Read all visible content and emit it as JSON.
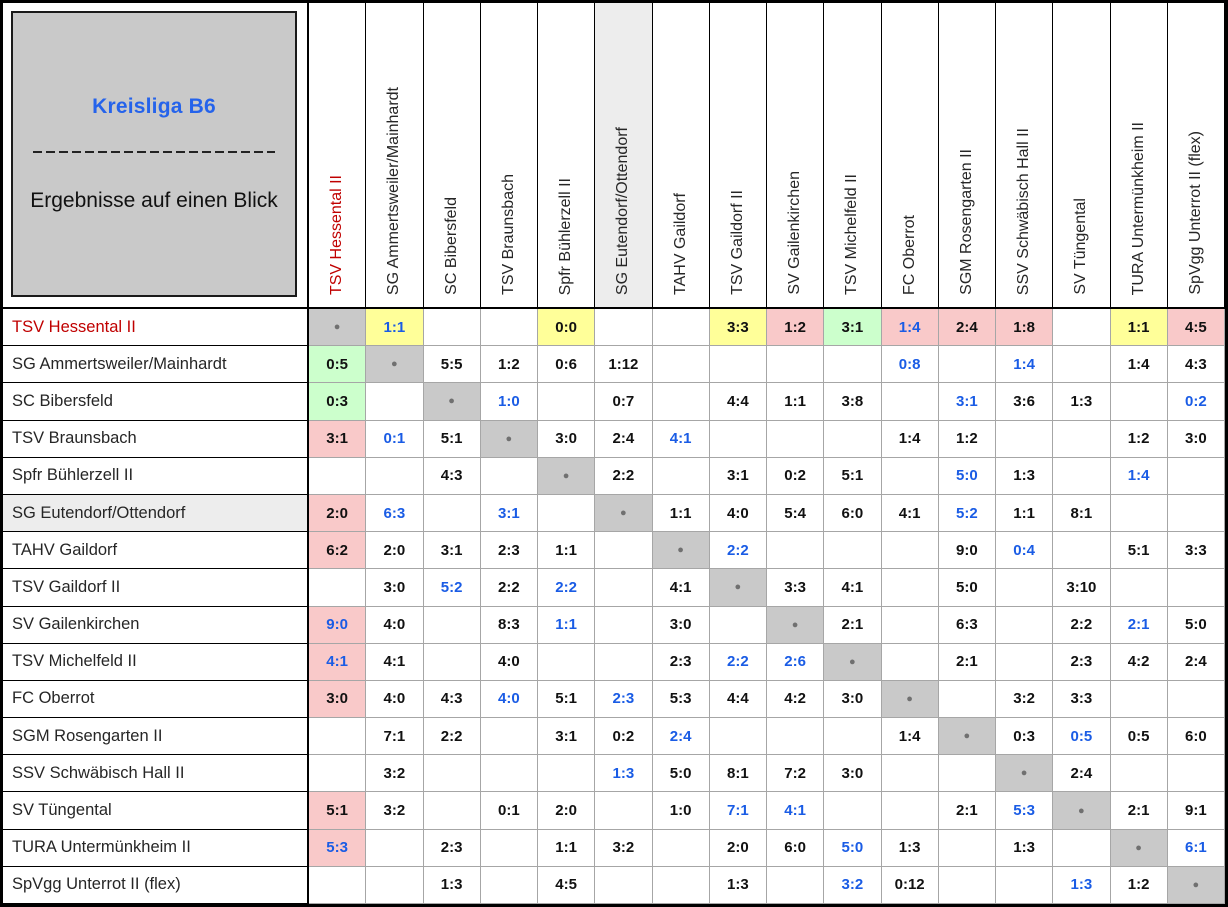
{
  "chart_data": {
    "type": "table",
    "title": "Kreisliga B6",
    "subtitle": "Ergebnisse auf einen Blick",
    "layout": {
      "rows_are": "home team",
      "columns_are": "away team",
      "diagonal_marker": "dot"
    },
    "teams": [
      "TSV Hessental II",
      "SG Ammertsweiler/Mainhardt",
      "SC Bibersfeld",
      "TSV Braunsbach",
      "Spfr Bühlerzell II",
      "SG Eutendorf/Ottendorf",
      "TAHV Gaildorf",
      "TSV Gaildorf II",
      "SV Gailenkirchen",
      "TSV Michelfeld II",
      "FC Oberrot",
      "SGM Rosengarten II",
      "SSV Schwäbisch Hall II",
      "SV Tüngental",
      "TURA Untermünkheim II",
      "SpVgg Unterrot II (flex)"
    ],
    "selected_team_index": 0,
    "shaded_team_index": 5,
    "cell_format": "each cell is \"D\" (diagonal), \"\" (no result) or [score, bg, fg]; bg: y=yellow draw, g=green win, r=red loss (vs selected team), \"\"=white; fg: b=blue, \"\"=black",
    "cells": [
      [
        "D",
        [
          "1:1",
          "y",
          "b"
        ],
        "",
        "",
        [
          "0:0",
          "y",
          ""
        ],
        "",
        "",
        [
          "3:3",
          "y",
          ""
        ],
        [
          "1:2",
          "r",
          ""
        ],
        [
          "3:1",
          "g",
          ""
        ],
        [
          "1:4",
          "r",
          "b"
        ],
        [
          "2:4",
          "r",
          ""
        ],
        [
          "1:8",
          "r",
          ""
        ],
        "",
        [
          "1:1",
          "y",
          ""
        ],
        [
          "4:5",
          "r",
          ""
        ]
      ],
      [
        [
          "0:5",
          "g",
          ""
        ],
        "D",
        [
          "5:5",
          "",
          ""
        ],
        [
          "1:2",
          "",
          ""
        ],
        [
          "0:6",
          "",
          ""
        ],
        [
          "1:12",
          "",
          ""
        ],
        "",
        "",
        "",
        "",
        [
          "0:8",
          "",
          "b"
        ],
        "",
        [
          "1:4",
          "",
          "b"
        ],
        "",
        [
          "1:4",
          "",
          ""
        ],
        [
          "4:3",
          "",
          ""
        ]
      ],
      [
        [
          "0:3",
          "g",
          ""
        ],
        "",
        "D",
        [
          "1:0",
          "",
          "b"
        ],
        "",
        [
          "0:7",
          "",
          ""
        ],
        "",
        [
          "4:4",
          "",
          ""
        ],
        [
          "1:1",
          "",
          ""
        ],
        [
          "3:8",
          "",
          ""
        ],
        "",
        [
          "3:1",
          "",
          "b"
        ],
        [
          "3:6",
          "",
          ""
        ],
        [
          "1:3",
          "",
          ""
        ],
        "",
        [
          "0:2",
          "",
          "b"
        ]
      ],
      [
        [
          "3:1",
          "r",
          ""
        ],
        [
          "0:1",
          "",
          "b"
        ],
        [
          "5:1",
          "",
          ""
        ],
        "D",
        [
          "3:0",
          "",
          ""
        ],
        [
          "2:4",
          "",
          ""
        ],
        [
          "4:1",
          "",
          "b"
        ],
        "",
        "",
        "",
        [
          "1:4",
          "",
          ""
        ],
        [
          "1:2",
          "",
          ""
        ],
        "",
        "",
        [
          "1:2",
          "",
          ""
        ],
        [
          "3:0",
          "",
          ""
        ]
      ],
      [
        "",
        "",
        [
          "4:3",
          "",
          ""
        ],
        "",
        "D",
        [
          "2:2",
          "",
          ""
        ],
        "",
        [
          "3:1",
          "",
          ""
        ],
        [
          "0:2",
          "",
          ""
        ],
        [
          "5:1",
          "",
          ""
        ],
        "",
        [
          "5:0",
          "",
          "b"
        ],
        [
          "1:3",
          "",
          ""
        ],
        "",
        [
          "1:4",
          "",
          "b"
        ],
        ""
      ],
      [
        [
          "2:0",
          "r",
          ""
        ],
        [
          "6:3",
          "",
          "b"
        ],
        "",
        [
          "3:1",
          "",
          "b"
        ],
        "",
        "D",
        [
          "1:1",
          "",
          ""
        ],
        [
          "4:0",
          "",
          ""
        ],
        [
          "5:4",
          "",
          ""
        ],
        [
          "6:0",
          "",
          ""
        ],
        [
          "4:1",
          "",
          ""
        ],
        [
          "5:2",
          "",
          "b"
        ],
        [
          "1:1",
          "",
          ""
        ],
        [
          "8:1",
          "",
          ""
        ],
        "",
        ""
      ],
      [
        [
          "6:2",
          "r",
          ""
        ],
        [
          "2:0",
          "",
          ""
        ],
        [
          "3:1",
          "",
          ""
        ],
        [
          "2:3",
          "",
          ""
        ],
        [
          "1:1",
          "",
          ""
        ],
        "",
        "D",
        [
          "2:2",
          "",
          "b"
        ],
        "",
        "",
        "",
        [
          "9:0",
          "",
          ""
        ],
        [
          "0:4",
          "",
          "b"
        ],
        "",
        [
          "5:1",
          "",
          ""
        ],
        [
          "3:3",
          "",
          ""
        ]
      ],
      [
        "",
        [
          "3:0",
          "",
          ""
        ],
        [
          "5:2",
          "",
          "b"
        ],
        [
          "2:2",
          "",
          ""
        ],
        [
          "2:2",
          "",
          "b"
        ],
        "",
        [
          "4:1",
          "",
          ""
        ],
        "D",
        [
          "3:3",
          "",
          ""
        ],
        [
          "4:1",
          "",
          ""
        ],
        "",
        [
          "5:0",
          "",
          ""
        ],
        "",
        [
          "3:10",
          "",
          ""
        ],
        "",
        ""
      ],
      [
        [
          "9:0",
          "r",
          "b"
        ],
        [
          "4:0",
          "",
          ""
        ],
        "",
        [
          "8:3",
          "",
          ""
        ],
        [
          "1:1",
          "",
          "b"
        ],
        "",
        [
          "3:0",
          "",
          ""
        ],
        "",
        "D",
        [
          "2:1",
          "",
          ""
        ],
        "",
        [
          "6:3",
          "",
          ""
        ],
        "",
        [
          "2:2",
          "",
          ""
        ],
        [
          "2:1",
          "",
          "b"
        ],
        [
          "5:0",
          "",
          ""
        ]
      ],
      [
        [
          "4:1",
          "r",
          "b"
        ],
        [
          "4:1",
          "",
          ""
        ],
        "",
        [
          "4:0",
          "",
          ""
        ],
        "",
        "",
        [
          "2:3",
          "",
          ""
        ],
        [
          "2:2",
          "",
          "b"
        ],
        [
          "2:6",
          "",
          "b"
        ],
        "D",
        "",
        [
          "2:1",
          "",
          ""
        ],
        "",
        [
          "2:3",
          "",
          ""
        ],
        [
          "4:2",
          "",
          ""
        ],
        [
          "2:4",
          "",
          ""
        ]
      ],
      [
        [
          "3:0",
          "r",
          ""
        ],
        [
          "4:0",
          "",
          ""
        ],
        [
          "4:3",
          "",
          ""
        ],
        [
          "4:0",
          "",
          "b"
        ],
        [
          "5:1",
          "",
          ""
        ],
        [
          "2:3",
          "",
          "b"
        ],
        [
          "5:3",
          "",
          ""
        ],
        [
          "4:4",
          "",
          ""
        ],
        [
          "4:2",
          "",
          ""
        ],
        [
          "3:0",
          "",
          ""
        ],
        "D",
        "",
        [
          "3:2",
          "",
          ""
        ],
        [
          "3:3",
          "",
          ""
        ],
        "",
        ""
      ],
      [
        "",
        [
          "7:1",
          "",
          ""
        ],
        [
          "2:2",
          "",
          ""
        ],
        "",
        [
          "3:1",
          "",
          ""
        ],
        [
          "0:2",
          "",
          ""
        ],
        [
          "2:4",
          "",
          "b"
        ],
        "",
        "",
        "",
        [
          "1:4",
          "",
          ""
        ],
        "D",
        [
          "0:3",
          "",
          ""
        ],
        [
          "0:5",
          "",
          "b"
        ],
        [
          "0:5",
          "",
          ""
        ],
        [
          "6:0",
          "",
          ""
        ]
      ],
      [
        "",
        [
          "3:2",
          "",
          ""
        ],
        "",
        "",
        "",
        [
          "1:3",
          "",
          "b"
        ],
        [
          "5:0",
          "",
          ""
        ],
        [
          "8:1",
          "",
          ""
        ],
        [
          "7:2",
          "",
          ""
        ],
        [
          "3:0",
          "",
          ""
        ],
        "",
        "",
        "D",
        [
          "2:4",
          "",
          ""
        ],
        "",
        ""
      ],
      [
        [
          "5:1",
          "r",
          ""
        ],
        [
          "3:2",
          "",
          ""
        ],
        "",
        [
          "0:1",
          "",
          ""
        ],
        [
          "2:0",
          "",
          ""
        ],
        "",
        [
          "1:0",
          "",
          ""
        ],
        [
          "7:1",
          "",
          "b"
        ],
        [
          "4:1",
          "",
          "b"
        ],
        "",
        "",
        [
          "2:1",
          "",
          ""
        ],
        [
          "5:3",
          "",
          "b"
        ],
        "D",
        [
          "2:1",
          "",
          ""
        ],
        [
          "9:1",
          "",
          ""
        ]
      ],
      [
        [
          "5:3",
          "r",
          "b"
        ],
        "",
        [
          "2:3",
          "",
          ""
        ],
        "",
        [
          "1:1",
          "",
          ""
        ],
        [
          "3:2",
          "",
          ""
        ],
        "",
        [
          "2:0",
          "",
          ""
        ],
        [
          "6:0",
          "",
          ""
        ],
        [
          "5:0",
          "",
          "b"
        ],
        [
          "1:3",
          "",
          ""
        ],
        "",
        [
          "1:3",
          "",
          ""
        ],
        "",
        "D",
        [
          "6:1",
          "",
          "b"
        ]
      ],
      [
        "",
        "",
        [
          "1:3",
          "",
          ""
        ],
        "",
        [
          "4:5",
          "",
          ""
        ],
        "",
        "",
        [
          "1:3",
          "",
          ""
        ],
        "",
        [
          "3:2",
          "",
          "b"
        ],
        [
          "0:12",
          "",
          ""
        ],
        "",
        "",
        [
          "1:3",
          "",
          "b"
        ],
        [
          "1:2",
          "",
          ""
        ],
        "D"
      ]
    ],
    "colors": {
      "draw_bg": "#ffff99",
      "win_bg": "#ccffcc",
      "loss_bg": "#f9c9c9",
      "diagonal_bg": "#c9c9c9",
      "shaded_row_bg": "#ededed",
      "blue_score_text": "#1a5ce5",
      "selected_team_text": "#c00000",
      "title_text": "#2563eb",
      "panel_bg": "#c9c9c9",
      "grid_line": "#a6a6a6"
    }
  }
}
